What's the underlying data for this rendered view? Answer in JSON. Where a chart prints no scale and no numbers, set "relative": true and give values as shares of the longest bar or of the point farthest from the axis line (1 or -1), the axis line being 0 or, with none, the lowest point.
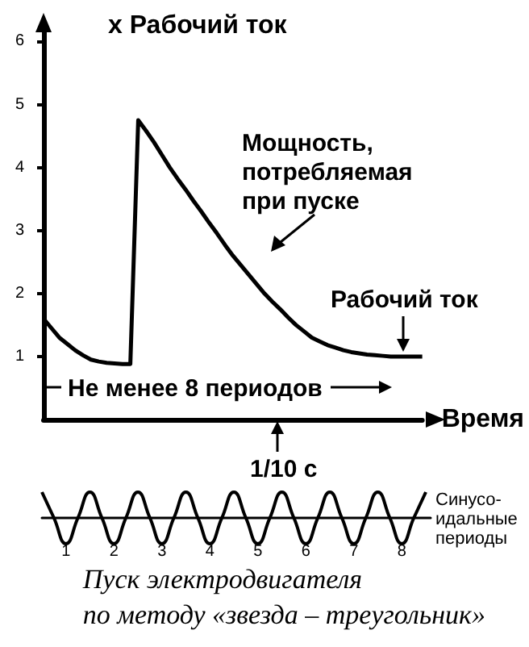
{
  "chart_data": [
    {
      "type": "line",
      "ylabel": "x Рабочий ток",
      "xlabel": "Время",
      "categories": [
        null,
        null,
        null,
        null,
        null,
        null,
        null,
        null,
        null,
        null,
        null,
        null,
        null,
        null,
        null,
        null,
        null,
        null,
        null,
        null,
        null,
        null,
        null,
        null,
        null,
        null,
        null,
        null,
        null,
        null,
        null,
        null,
        null,
        null,
        null,
        null,
        null,
        null,
        null,
        null,
        null,
        null,
        null,
        null,
        null,
        null,
        null,
        null,
        null
      ],
      "series": [
        {
          "color": "#000000",
          "values": [
            1.6,
            1.45,
            1.3,
            1.2,
            1.1,
            1.02,
            0.95,
            0.92,
            0.9,
            0.89,
            0.88,
            0.88,
            4.75,
            4.58,
            4.4,
            4.2,
            4.0,
            3.82,
            3.65,
            3.47,
            3.3,
            3.12,
            2.95,
            2.77,
            2.6,
            2.45,
            2.3,
            2.15,
            2.0,
            1.87,
            1.75,
            1.62,
            1.5,
            1.4,
            1.3,
            1.24,
            1.18,
            1.14,
            1.1,
            1.07,
            1.05,
            1.03,
            1.02,
            1.01,
            1.0,
            1.0,
            1.0,
            1.0,
            1.0
          ]
        }
      ],
      "ylim": [
        0,
        6.3
      ],
      "yticks": [
        1,
        2,
        3,
        4,
        5,
        6
      ],
      "tick_labels": "y",
      "marker": "none",
      "annotations": [
        "Мощность,\nпотребляемая\nпри пуске",
        "Рабочий ток",
        "Не менее 8 периодов",
        "1/10 с"
      ]
    },
    {
      "type": "line",
      "relative": true,
      "title": "Пуск электродвигателя\nпо методу «звезда – треугольник»",
      "x": [
        0,
        0.25,
        0.5,
        0.75,
        1,
        1.25,
        1.5,
        1.75,
        2,
        2.25,
        2.5,
        2.75,
        3,
        3.25,
        3.5,
        3.75,
        4,
        4.25,
        4.5,
        4.75,
        5,
        5.25,
        5.5,
        5.75,
        6,
        6.25,
        6.5,
        6.75,
        7,
        7.25,
        7.5,
        7.75,
        8
      ],
      "series": [
        {
          "color": "#000000",
          "values": [
            1,
            0,
            -1,
            0,
            1,
            0,
            -1,
            0,
            1,
            0,
            -1,
            0,
            1,
            0,
            -1,
            0,
            1,
            0,
            -1,
            0,
            1,
            0,
            -1,
            0,
            1,
            0,
            -1,
            0,
            1,
            0,
            -1,
            0,
            1
          ]
        }
      ],
      "xlim": [
        0,
        8.1
      ],
      "xticks": [
        {
          "value": 0.5,
          "label": "1"
        },
        {
          "value": 1.5,
          "label": "2"
        },
        {
          "value": 2.5,
          "label": "3"
        },
        {
          "value": 3.5,
          "label": "4"
        },
        {
          "value": 4.5,
          "label": "5"
        },
        {
          "value": 5.5,
          "label": "6"
        },
        {
          "value": 6.5,
          "label": "7"
        },
        {
          "value": 7.5,
          "label": "8"
        }
      ],
      "tick_labels": "x",
      "marker": "none",
      "annotations": [
        "Синусо-\nидальные\nпериоды"
      ]
    }
  ]
}
